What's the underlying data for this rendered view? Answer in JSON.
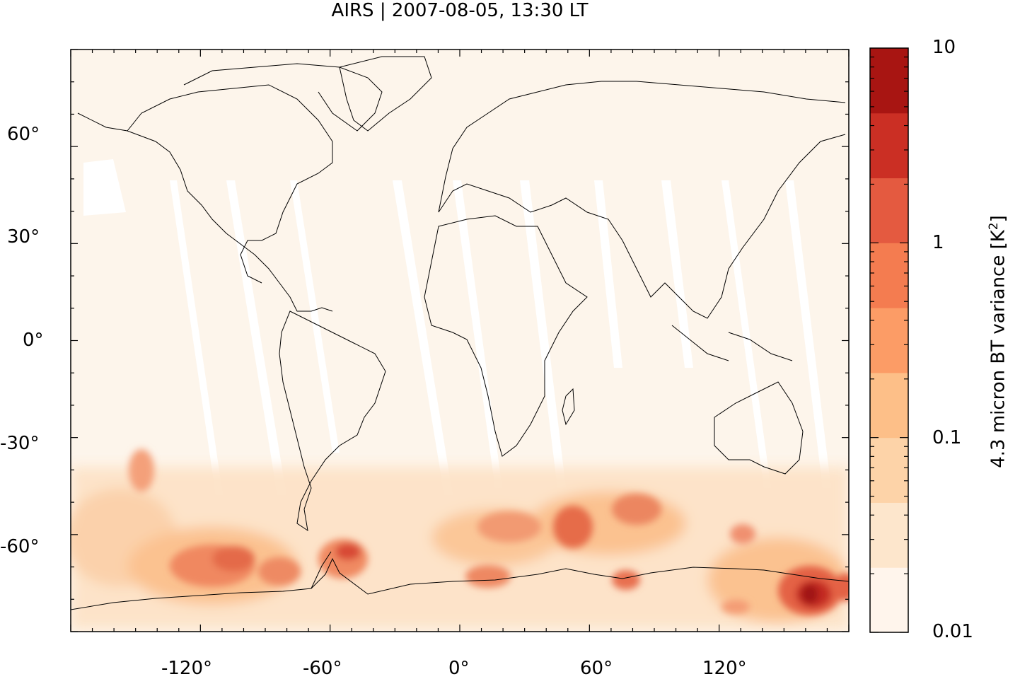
{
  "title": "AIRS | 2007-08-05, 13:30 LT",
  "map": {
    "projection": "plate carree",
    "lon_range": [
      -180,
      180
    ],
    "lat_range": [
      -90,
      90
    ],
    "lat_tick_labels": [
      "60°",
      "30°",
      "0°",
      "-30°",
      "-60°"
    ],
    "lon_tick_labels": [
      "-120°",
      "-60°",
      "0°",
      "60°",
      "120°"
    ],
    "background_color": "#fdf5eb",
    "data_gap_color": "#ffffff",
    "coastline_color": "#000000",
    "description_field": "4.3 micron BT variance"
  },
  "colorbar": {
    "scale": "log",
    "range": [
      0.01,
      10
    ],
    "tick_labels": [
      "10",
      "1",
      "0.1",
      "0.01"
    ],
    "label_prefix": "4.3 micron BT variance [K",
    "label_sup": "2",
    "label_suffix": "]",
    "colors": [
      "#fff5ec",
      "#fde6cc",
      "#fdd3a8",
      "#fdbf88",
      "#fc9c66",
      "#f47c50",
      "#e45a40",
      "#cb2f24",
      "#a81512"
    ]
  }
}
